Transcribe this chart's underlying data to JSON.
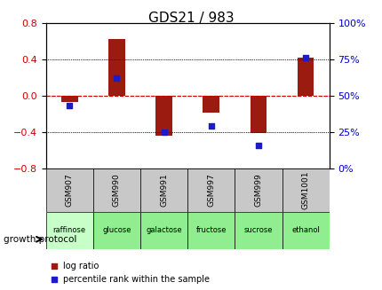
{
  "title": "GDS21 / 983",
  "categories": [
    "GSM907",
    "GSM990",
    "GSM991",
    "GSM997",
    "GSM999",
    "GSM1001"
  ],
  "substrates": [
    "raffinose",
    "glucose",
    "galactose",
    "fructose",
    "sucrose",
    "ethanol"
  ],
  "log_ratios": [
    -0.07,
    0.63,
    -0.44,
    -0.19,
    -0.41,
    0.42
  ],
  "percentile_ranks": [
    43,
    62,
    25,
    29,
    16,
    76
  ],
  "ylim_left": [
    -0.8,
    0.8
  ],
  "ylim_right": [
    0,
    100
  ],
  "bar_color": "#9B1B10",
  "dot_color": "#1B1BCC",
  "bg_color": "#FFFFFF",
  "grid_color": "#000000",
  "substrate_bg": "#90EE90",
  "gsm_bg": "#C0C0C0",
  "ylabel_left": "",
  "ylabel_right": "",
  "left_ticks": [
    -0.8,
    -0.4,
    0,
    0.4,
    0.8
  ],
  "right_ticks": [
    0,
    25,
    50,
    75,
    100
  ],
  "legend_log_ratio": "log ratio",
  "legend_percentile": "percentile rank within the sample"
}
